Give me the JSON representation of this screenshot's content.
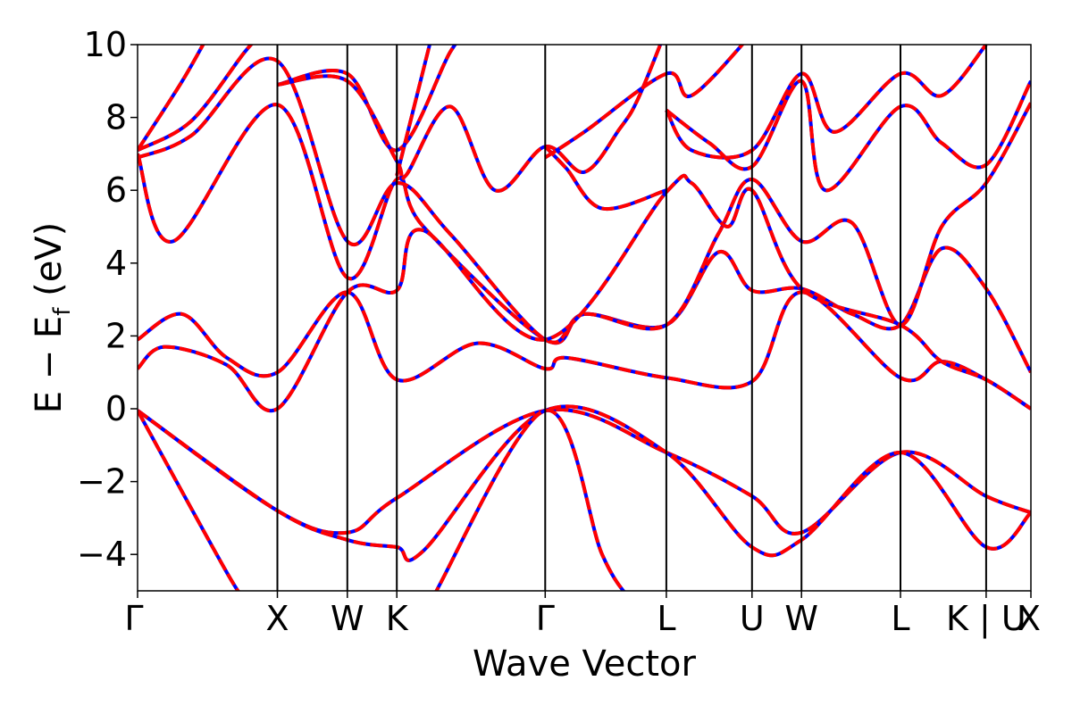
{
  "chart_data": {
    "type": "line",
    "title": "",
    "xlabel": "Wave Vector",
    "ylabel": "E − E",
    "ylabel_sub": "f",
    "ylabel_unit": " (eV)",
    "ylim": [
      -5,
      10
    ],
    "xlim": [
      0,
      1
    ],
    "grid": false,
    "legend": "none",
    "y_ticks": [
      -4,
      -2,
      0,
      2,
      4,
      6,
      8,
      10
    ],
    "y_tick_labels": [
      "−4",
      "−2",
      "0",
      "2",
      "4",
      "6",
      "8",
      "10"
    ],
    "x_ticks": [
      {
        "label": "Γ",
        "pos": 0.0
      },
      {
        "label": "X",
        "pos": 0.1565
      },
      {
        "label": "W",
        "pos": 0.2348
      },
      {
        "label": "K",
        "pos": 0.2902
      },
      {
        "label": "Γ",
        "pos": 0.4563
      },
      {
        "label": "L",
        "pos": 0.5919
      },
      {
        "label": "U",
        "pos": 0.6878
      },
      {
        "label": "W",
        "pos": 0.7432
      },
      {
        "label": "L",
        "pos": 0.854
      },
      {
        "label": "K | U",
        "pos": 0.9499
      },
      {
        "label": "X",
        "pos": 1.0
      }
    ],
    "series_colors": {
      "red": "#ff0000",
      "blue": "#0000ff"
    },
    "bands": [
      {
        "pts": [
          [
            0,
            7.0
          ],
          [
            0.04,
            4.6
          ],
          [
            0.1565,
            8.35
          ],
          [
            0.2348,
            3.6
          ],
          [
            0.2902,
            6.3
          ],
          [
            0.32,
            5.0
          ],
          [
            0.4563,
            1.9
          ],
          [
            0.5,
            2.6
          ],
          [
            0.5919,
            2.3
          ],
          [
            0.65,
            4.3
          ],
          [
            0.6878,
            3.25
          ],
          [
            0.7432,
            3.3
          ],
          [
            0.8,
            2.6
          ],
          [
            0.854,
            2.3
          ],
          [
            0.9,
            4.4
          ],
          [
            0.9499,
            3.3
          ],
          [
            1.0,
            1.0
          ]
        ]
      },
      {
        "pts": [
          [
            0,
            6.9
          ],
          [
            0.06,
            7.5
          ],
          [
            0.1565,
            9.55
          ],
          [
            0.2348,
            4.6
          ],
          [
            0.2902,
            6.2
          ],
          [
            0.35,
            4.8
          ],
          [
            0.4563,
            1.9
          ],
          [
            0.5,
            2.6
          ],
          [
            0.5919,
            2.3
          ],
          [
            0.65,
            4.8
          ],
          [
            0.6878,
            6.3
          ],
          [
            0.7432,
            4.6
          ],
          [
            0.8,
            5.1
          ],
          [
            0.854,
            2.3
          ],
          [
            0.9,
            5.0
          ],
          [
            0.9499,
            6.2
          ],
          [
            1.0,
            8.4
          ]
        ]
      },
      {
        "pts": [
          [
            0,
            1.9
          ],
          [
            0.05,
            2.6
          ],
          [
            0.1,
            1.4
          ],
          [
            0.1565,
            1.0
          ],
          [
            0.2348,
            3.2
          ],
          [
            0.2902,
            0.8
          ],
          [
            0.38,
            1.8
          ],
          [
            0.4563,
            1.1
          ],
          [
            0.48,
            1.4
          ],
          [
            0.5919,
            0.85
          ],
          [
            0.6878,
            0.75
          ],
          [
            0.7432,
            3.2
          ],
          [
            0.854,
            0.85
          ],
          [
            0.9,
            1.3
          ],
          [
            0.9499,
            0.8
          ],
          [
            1.0,
            0.0
          ]
        ]
      },
      {
        "pts": [
          [
            0,
            1.1
          ],
          [
            0.03,
            1.7
          ],
          [
            0.1,
            1.2
          ],
          [
            0.1565,
            0.0
          ],
          [
            0.2348,
            3.2
          ],
          [
            0.2902,
            3.25
          ],
          [
            0.32,
            4.9
          ],
          [
            0.4563,
            1.9
          ],
          [
            0.5919,
            5.95
          ],
          [
            0.62,
            6.2
          ],
          [
            0.66,
            5.0
          ],
          [
            0.6878,
            6.0
          ],
          [
            0.7432,
            3.3
          ],
          [
            0.854,
            2.3
          ],
          [
            0.9,
            1.3
          ],
          [
            0.9499,
            0.8
          ],
          [
            1.0,
            0.0
          ]
        ]
      },
      {
        "pts": [
          [
            0,
            -0.05
          ],
          [
            0.1565,
            -2.8
          ],
          [
            0.2348,
            -3.4
          ],
          [
            0.2902,
            -2.45
          ],
          [
            0.4563,
            -0.05
          ],
          [
            0.5919,
            -1.2
          ],
          [
            0.6878,
            -2.4
          ],
          [
            0.7432,
            -3.4
          ],
          [
            0.854,
            -1.2
          ],
          [
            0.9499,
            -2.4
          ],
          [
            1.0,
            -2.85
          ]
        ]
      },
      {
        "pts": [
          [
            0,
            -0.05
          ],
          [
            0.1565,
            -2.8
          ],
          [
            0.2348,
            -3.6
          ],
          [
            0.2902,
            -3.8
          ],
          [
            0.32,
            -3.9
          ],
          [
            0.4563,
            -0.05
          ],
          [
            0.5919,
            -1.2
          ],
          [
            0.6878,
            -3.8
          ],
          [
            0.7432,
            -3.6
          ],
          [
            0.854,
            -1.2
          ],
          [
            0.9499,
            -3.8
          ],
          [
            1.0,
            -2.85
          ]
        ]
      },
      {
        "pts": [
          [
            0,
            -0.05
          ],
          [
            0.1,
            -4.5
          ],
          [
            0.12,
            -5.2
          ]
        ]
      },
      {
        "pts": [
          [
            0.33,
            -5.2
          ],
          [
            0.4563,
            -0.05
          ],
          [
            0.52,
            -4.0
          ],
          [
            0.55,
            -5.2
          ]
        ]
      },
      {
        "pts": [
          [
            0,
            7.1
          ],
          [
            0.06,
            7.9
          ],
          [
            0.12,
            9.8
          ],
          [
            0.14,
            10.3
          ]
        ]
      },
      {
        "pts": [
          [
            0,
            7.1
          ],
          [
            0.05,
            9.0
          ],
          [
            0.08,
            10.3
          ]
        ]
      },
      {
        "pts": [
          [
            0.1565,
            8.9
          ],
          [
            0.2348,
            9.2
          ],
          [
            0.2902,
            7.1
          ],
          [
            0.35,
            9.8
          ],
          [
            0.37,
            10.3
          ]
        ]
      },
      {
        "pts": [
          [
            0.1565,
            8.9
          ],
          [
            0.2348,
            9.0
          ],
          [
            0.2902,
            6.8
          ],
          [
            0.3,
            6.4
          ],
          [
            0.35,
            8.3
          ],
          [
            0.4,
            6.0
          ],
          [
            0.4563,
            7.2
          ],
          [
            0.5,
            6.5
          ],
          [
            0.54,
            7.7
          ],
          [
            0.56,
            8.5
          ],
          [
            0.59,
            10.3
          ]
        ]
      },
      {
        "pts": [
          [
            0.4563,
            7.2
          ],
          [
            0.48,
            6.6
          ],
          [
            0.52,
            5.5
          ],
          [
            0.5919,
            6.0
          ]
        ]
      },
      {
        "pts": [
          [
            0.4563,
            6.9
          ],
          [
            0.5,
            7.6
          ],
          [
            0.5919,
            9.2
          ],
          [
            0.62,
            8.6
          ],
          [
            0.6878,
            10.3
          ]
        ]
      },
      {
        "pts": [
          [
            0.5919,
            8.2
          ],
          [
            0.62,
            7.1
          ],
          [
            0.6878,
            7.1
          ],
          [
            0.7432,
            9.2
          ],
          [
            0.78,
            7.6
          ],
          [
            0.854,
            9.2
          ],
          [
            0.9,
            8.6
          ],
          [
            0.9499,
            10.0
          ]
        ]
      },
      {
        "pts": [
          [
            0.5919,
            8.2
          ],
          [
            0.64,
            7.3
          ],
          [
            0.6878,
            6.65
          ],
          [
            0.7432,
            9.0
          ],
          [
            0.77,
            6.0
          ],
          [
            0.854,
            8.3
          ],
          [
            0.9,
            7.3
          ],
          [
            0.9499,
            6.7
          ],
          [
            1.0,
            9.0
          ]
        ]
      },
      {
        "pts": [
          [
            0.2902,
            6.4
          ],
          [
            0.33,
            10.3
          ]
        ]
      }
    ]
  }
}
